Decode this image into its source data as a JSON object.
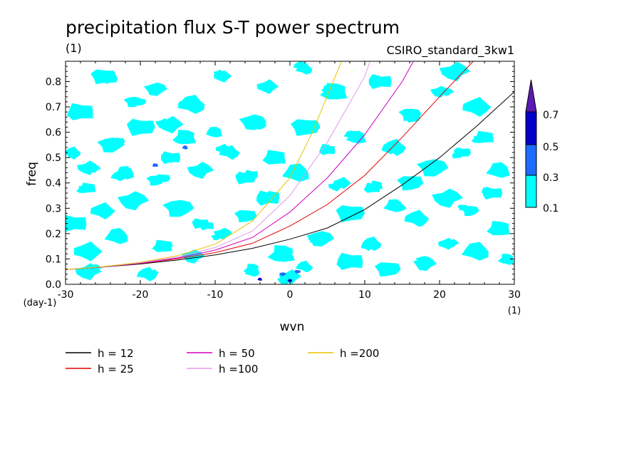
{
  "chart_data": {
    "type": "heatmap",
    "title": "precipitation flux S-T power spectrum",
    "subtitle_left": "(1)",
    "subtitle_right": "CSIRO_standard_3kw1",
    "xlabel": "wvn",
    "ylabel": "freq",
    "x_unit": "(1)",
    "y_unit": "(day-1)",
    "xlim": [
      -30,
      30
    ],
    "ylim": [
      0,
      0.88
    ],
    "x_ticks": [
      -30,
      -20,
      -10,
      0,
      10,
      20,
      30
    ],
    "x_tick_labels": [
      "-30",
      "-20",
      "-10",
      "0",
      "10",
      "20",
      "30"
    ],
    "y_ticks": [
      0,
      0.1,
      0.2,
      0.3,
      0.4,
      0.5,
      0.6,
      0.7,
      0.8
    ],
    "y_tick_labels": [
      "0.0",
      "0.1",
      "0.2",
      "0.3",
      "0.4",
      "0.5",
      "0.6",
      "0.7",
      "0.8"
    ],
    "grid": false,
    "colorbar": {
      "levels": [
        "0.1",
        "0.3",
        "0.5",
        "0.7"
      ],
      "colors": [
        "#00ffff",
        "#1c6cff",
        "#0000c8",
        "#5a1ab4"
      ]
    },
    "shaded_regions_lowest": [
      [
        -29,
        0.52
      ],
      [
        -27,
        0.46
      ],
      [
        -24,
        0.55
      ],
      [
        -20,
        0.62
      ],
      [
        -27,
        0.38
      ],
      [
        -22,
        0.44
      ],
      [
        -25,
        0.29
      ],
      [
        -21,
        0.33
      ],
      [
        -18,
        0.41
      ],
      [
        -16,
        0.5
      ],
      [
        -14,
        0.58
      ],
      [
        -13,
        0.71
      ],
      [
        -9,
        0.82
      ],
      [
        -18,
        0.77
      ],
      [
        -25,
        0.82
      ],
      [
        -28,
        0.68
      ],
      [
        -10,
        0.6
      ],
      [
        -8,
        0.52
      ],
      [
        -12,
        0.45
      ],
      [
        -15,
        0.3
      ],
      [
        -12,
        0.24
      ],
      [
        -17,
        0.15
      ],
      [
        -23,
        0.19
      ],
      [
        -27,
        0.13
      ],
      [
        -9,
        0.2
      ],
      [
        -6,
        0.27
      ],
      [
        -3,
        0.34
      ],
      [
        -1,
        0.12
      ],
      [
        2,
        0.07
      ],
      [
        0,
        0.03
      ],
      [
        4,
        0.18
      ],
      [
        8,
        0.28
      ],
      [
        11,
        0.38
      ],
      [
        14,
        0.31
      ],
      [
        17,
        0.26
      ],
      [
        21,
        0.34
      ],
      [
        24,
        0.29
      ],
      [
        27,
        0.36
      ],
      [
        28,
        0.22
      ],
      [
        25,
        0.13
      ],
      [
        21,
        0.16
      ],
      [
        18,
        0.08
      ],
      [
        13,
        0.06
      ],
      [
        8,
        0.09
      ],
      [
        -5,
        0.06
      ],
      [
        -19,
        0.04
      ],
      [
        -27,
        0.05
      ],
      [
        19,
        0.46
      ],
      [
        23,
        0.52
      ],
      [
        26,
        0.58
      ],
      [
        28,
        0.45
      ],
      [
        25,
        0.7
      ],
      [
        20,
        0.76
      ],
      [
        16,
        0.67
      ],
      [
        12,
        0.8
      ],
      [
        6,
        0.76
      ],
      [
        2,
        0.85
      ],
      [
        -3,
        0.78
      ],
      [
        -5,
        0.64
      ],
      [
        2,
        0.62
      ],
      [
        5,
        0.53
      ],
      [
        9,
        0.58
      ],
      [
        14,
        0.54
      ],
      [
        22,
        0.84
      ],
      [
        -21,
        0.72
      ],
      [
        -6,
        0.42
      ],
      [
        -2,
        0.5
      ],
      [
        1,
        0.44
      ],
      [
        7,
        0.4
      ],
      [
        -13,
        0.11
      ],
      [
        16,
        0.4
      ],
      [
        -29,
        0.24
      ],
      [
        29,
        0.1
      ],
      [
        11,
        0.16
      ],
      [
        -16,
        0.63
      ]
    ],
    "shaded_regions_mid": [
      [
        -1,
        0.04
      ],
      [
        1,
        0.05
      ],
      [
        -18,
        0.47
      ],
      [
        -14,
        0.54
      ]
    ],
    "shaded_regions_high": [
      [
        0,
        0.015
      ],
      [
        -4,
        0.02
      ]
    ],
    "series": [
      {
        "name": "h = 12",
        "color": "#000000",
        "x": [
          -30,
          -25,
          -20,
          -15,
          -10,
          -5,
          0,
          5,
          10,
          15,
          20,
          25,
          30
        ],
        "values": [
          0.058,
          0.068,
          0.08,
          0.096,
          0.116,
          0.142,
          0.178,
          0.222,
          0.295,
          0.392,
          0.5,
          0.625,
          0.76
        ]
      },
      {
        "name": "h = 25",
        "color": "#e00000",
        "x": [
          -30,
          -25,
          -20,
          -15,
          -10,
          -5,
          0,
          5,
          10,
          15,
          20,
          24.5
        ],
        "values": [
          0.058,
          0.069,
          0.082,
          0.101,
          0.125,
          0.162,
          0.23,
          0.315,
          0.43,
          0.58,
          0.74,
          0.88
        ]
      },
      {
        "name": "h = 50",
        "color": "#d000c0",
        "x": [
          -30,
          -25,
          -20,
          -15,
          -10,
          -5,
          0,
          5,
          10,
          15,
          16.5
        ],
        "values": [
          0.058,
          0.069,
          0.083,
          0.104,
          0.135,
          0.185,
          0.285,
          0.42,
          0.59,
          0.8,
          0.88
        ]
      },
      {
        "name": "h =100",
        "color": "#e29be8",
        "x": [
          -30,
          -25,
          -20,
          -15,
          -10,
          -5,
          0,
          5,
          10,
          10.7
        ],
        "values": [
          0.058,
          0.069,
          0.085,
          0.108,
          0.145,
          0.21,
          0.35,
          0.56,
          0.82,
          0.88
        ]
      },
      {
        "name": "h =200",
        "color": "#e6c400",
        "x": [
          -30,
          -25,
          -20,
          -15,
          -10,
          -5,
          0,
          3,
          6.9
        ],
        "values": [
          0.058,
          0.07,
          0.087,
          0.113,
          0.158,
          0.25,
          0.42,
          0.6,
          0.88
        ]
      }
    ]
  }
}
